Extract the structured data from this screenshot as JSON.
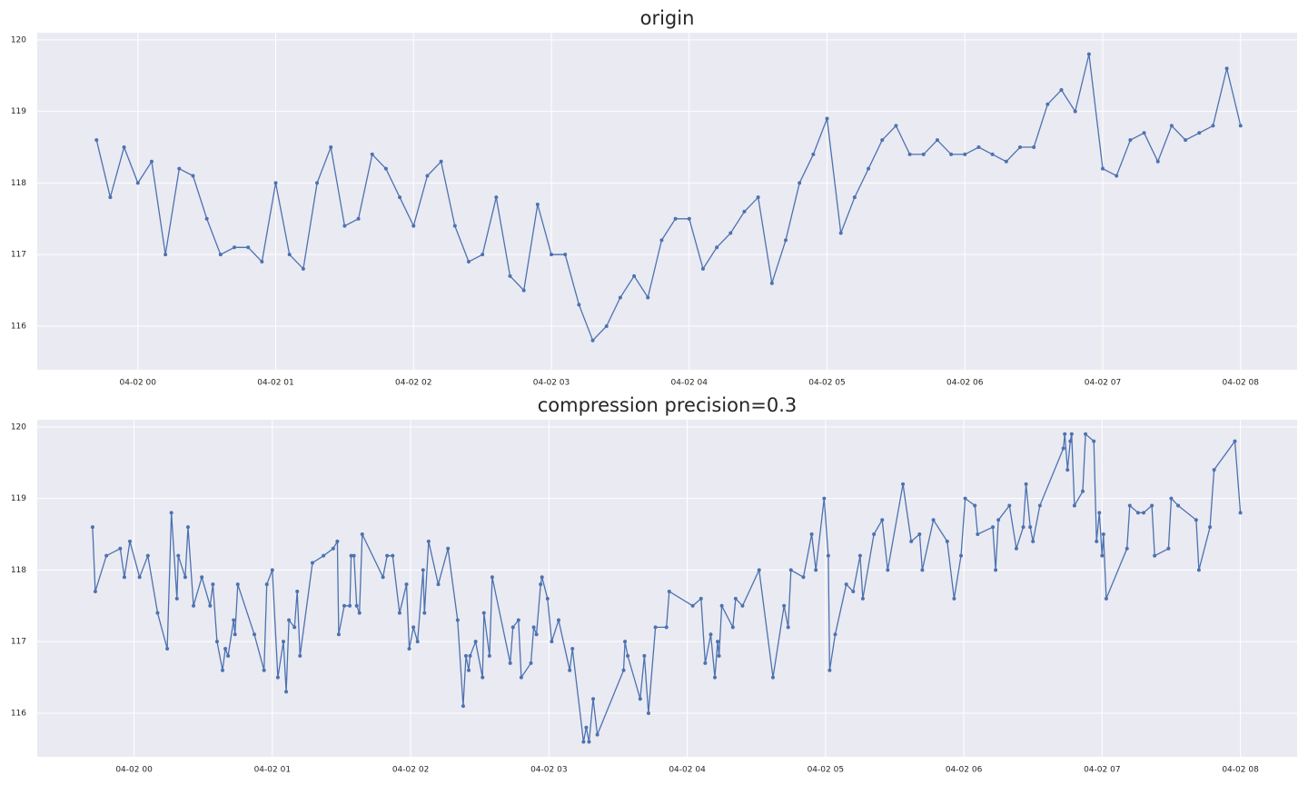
{
  "chart_data": [
    {
      "type": "line",
      "title": "origin",
      "color": "#4c72b0",
      "grid": true,
      "x": [
        -0.3,
        -0.2,
        -0.1,
        0.0,
        0.1,
        0.2,
        0.3,
        0.4,
        0.5,
        0.6,
        0.7,
        0.8,
        0.9,
        1.0,
        1.1,
        1.2,
        1.3,
        1.4,
        1.5,
        1.6,
        1.7,
        1.8,
        1.9,
        2.0,
        2.1,
        2.2,
        2.3,
        2.4,
        2.5,
        2.6,
        2.7,
        2.8,
        2.9,
        3.0,
        3.1,
        3.2,
        3.3,
        3.4,
        3.5,
        3.6,
        3.7,
        3.8,
        3.9,
        4.0,
        4.1,
        4.2,
        4.3,
        4.4,
        4.5,
        4.6,
        4.7,
        4.8,
        4.9,
        5.0,
        5.1,
        5.2,
        5.3,
        5.4,
        5.5,
        5.6,
        5.7,
        5.8,
        5.9,
        6.0,
        6.1,
        6.2,
        6.3,
        6.4,
        6.5,
        6.6,
        6.7,
        6.8,
        6.9,
        7.0,
        7.1,
        7.2,
        7.3,
        7.4,
        7.5,
        7.6,
        7.7,
        7.8,
        7.9,
        8.0
      ],
      "values": [
        118.6,
        117.8,
        118.5,
        118.0,
        118.3,
        117.0,
        118.2,
        118.1,
        117.5,
        117.0,
        117.1,
        117.1,
        116.9,
        118.0,
        117.0,
        116.8,
        118.0,
        118.5,
        117.4,
        117.5,
        118.4,
        118.2,
        117.8,
        117.4,
        118.1,
        118.3,
        117.4,
        116.9,
        117.0,
        117.8,
        116.7,
        116.5,
        117.7,
        117.0,
        117.0,
        116.3,
        115.8,
        116.0,
        116.4,
        116.7,
        116.4,
        117.2,
        117.5,
        117.5,
        116.8,
        117.1,
        117.3,
        117.6,
        117.8,
        116.6,
        117.2,
        118.0,
        118.4,
        118.9,
        117.3,
        117.8,
        118.2,
        118.6,
        118.8,
        118.4,
        118.4,
        118.6,
        118.4,
        118.4,
        118.5,
        118.4,
        118.3,
        118.5,
        118.5,
        119.1,
        119.3,
        119.0,
        119.8,
        118.2,
        118.1,
        118.6,
        118.7,
        118.3,
        118.8,
        118.6,
        118.7,
        118.8,
        119.6,
        118.8
      ],
      "xlim": [
        -0.73,
        8.41
      ],
      "ylim": [
        115.39,
        120.1
      ],
      "xticks": [
        {
          "value": 0,
          "label": "04-02 00"
        },
        {
          "value": 1,
          "label": "04-02 01"
        },
        {
          "value": 2,
          "label": "04-02 02"
        },
        {
          "value": 3,
          "label": "04-02 03"
        },
        {
          "value": 4,
          "label": "04-02 04"
        },
        {
          "value": 5,
          "label": "04-02 05"
        },
        {
          "value": 6,
          "label": "04-02 06"
        },
        {
          "value": 7,
          "label": "04-02 07"
        },
        {
          "value": 8,
          "label": "04-02 08"
        }
      ],
      "yticks": [
        116,
        117,
        118,
        119,
        120
      ]
    },
    {
      "type": "line",
      "title": "compression precision=0.3",
      "color": "#4c72b0",
      "grid": true,
      "x": [
        -0.3,
        -0.28,
        -0.2,
        -0.1,
        -0.07,
        -0.03,
        0.04,
        0.1,
        0.17,
        0.24,
        0.27,
        0.31,
        0.32,
        0.37,
        0.39,
        0.43,
        0.49,
        0.55,
        0.57,
        0.6,
        0.64,
        0.66,
        0.68,
        0.72,
        0.73,
        0.75,
        0.87,
        0.94,
        0.96,
        1.0,
        1.04,
        1.08,
        1.1,
        1.12,
        1.16,
        1.18,
        1.2,
        1.29,
        1.37,
        1.44,
        1.47,
        1.48,
        1.52,
        1.56,
        1.57,
        1.59,
        1.61,
        1.63,
        1.65,
        1.8,
        1.83,
        1.87,
        1.92,
        1.97,
        1.99,
        2.02,
        2.05,
        2.09,
        2.1,
        2.13,
        2.2,
        2.27,
        2.34,
        2.38,
        2.4,
        2.42,
        2.43,
        2.47,
        2.52,
        2.53,
        2.57,
        2.59,
        2.72,
        2.74,
        2.78,
        2.8,
        2.87,
        2.89,
        2.91,
        2.94,
        2.95,
        2.99,
        3.02,
        3.07,
        3.15,
        3.17,
        3.25,
        3.27,
        3.29,
        3.32,
        3.35,
        3.54,
        3.55,
        3.57,
        3.66,
        3.69,
        3.72,
        3.77,
        3.85,
        3.87,
        4.04,
        4.1,
        4.13,
        4.17,
        4.2,
        4.22,
        4.23,
        4.25,
        4.33,
        4.35,
        4.4,
        4.52,
        4.62,
        4.7,
        4.73,
        4.75,
        4.84,
        4.9,
        4.93,
        4.99,
        5.02,
        5.03,
        5.07,
        5.15,
        5.2,
        5.25,
        5.27,
        5.35,
        5.41,
        5.45,
        5.56,
        5.62,
        5.68,
        5.7,
        5.78,
        5.88,
        5.93,
        5.98,
        6.01,
        6.08,
        6.1,
        6.21,
        6.23,
        6.25,
        6.33,
        6.38,
        6.43,
        6.45,
        6.48,
        6.5,
        6.55,
        6.72,
        6.73,
        6.75,
        6.77,
        6.78,
        6.8,
        6.86,
        6.88,
        6.94,
        6.96,
        6.98,
        7.0,
        7.01,
        7.03,
        7.18,
        7.2,
        7.26,
        7.3,
        7.36,
        7.38,
        7.48,
        7.5,
        7.55,
        7.68,
        7.7,
        7.78,
        7.81,
        7.96,
        8.0
      ],
      "values": [
        118.6,
        117.7,
        118.2,
        118.3,
        117.9,
        118.4,
        117.9,
        118.2,
        117.4,
        116.9,
        118.8,
        117.6,
        118.2,
        117.9,
        118.6,
        117.5,
        117.9,
        117.5,
        117.8,
        117.0,
        116.6,
        116.9,
        116.8,
        117.3,
        117.1,
        117.8,
        117.1,
        116.6,
        117.8,
        118.0,
        116.5,
        117.0,
        116.3,
        117.3,
        117.2,
        117.7,
        116.8,
        118.1,
        118.2,
        118.3,
        118.4,
        117.1,
        117.5,
        117.5,
        118.2,
        118.2,
        117.5,
        117.4,
        118.5,
        117.9,
        118.2,
        118.2,
        117.4,
        117.8,
        116.9,
        117.2,
        117.0,
        118.0,
        117.4,
        118.4,
        117.8,
        118.3,
        117.3,
        116.1,
        116.8,
        116.6,
        116.8,
        117.0,
        116.5,
        117.4,
        116.8,
        117.9,
        116.7,
        117.2,
        117.3,
        116.5,
        116.7,
        117.2,
        117.1,
        117.8,
        117.9,
        117.6,
        117.0,
        117.3,
        116.6,
        116.9,
        115.6,
        115.8,
        115.6,
        116.2,
        115.7,
        116.6,
        117.0,
        116.8,
        116.2,
        116.8,
        116.0,
        117.2,
        117.2,
        117.7,
        117.5,
        117.6,
        116.7,
        117.1,
        116.5,
        117.0,
        116.8,
        117.5,
        117.2,
        117.6,
        117.5,
        118.0,
        116.5,
        117.5,
        117.2,
        118.0,
        117.9,
        118.5,
        118.0,
        119.0,
        118.2,
        116.6,
        117.1,
        117.8,
        117.7,
        118.2,
        117.6,
        118.5,
        118.7,
        118.0,
        119.2,
        118.4,
        118.5,
        118.0,
        118.7,
        118.4,
        117.6,
        118.2,
        119.0,
        118.9,
        118.5,
        118.6,
        118.0,
        118.7,
        118.9,
        118.3,
        118.6,
        119.2,
        118.6,
        118.4,
        118.9,
        119.7,
        119.9,
        119.4,
        119.8,
        119.9,
        118.9,
        119.1,
        119.9,
        119.8,
        118.4,
        118.8,
        118.2,
        118.5,
        117.6,
        118.3,
        118.9,
        118.8,
        118.8,
        118.9,
        118.2,
        118.3,
        119.0,
        118.9,
        118.7,
        118.0,
        118.6,
        119.4,
        119.8,
        118.8
      ],
      "xlim": [
        -0.7,
        8.41
      ],
      "ylim": [
        115.39,
        120.1
      ],
      "xticks": [
        {
          "value": 0,
          "label": "04-02 00"
        },
        {
          "value": 1,
          "label": "04-02 01"
        },
        {
          "value": 2,
          "label": "04-02 02"
        },
        {
          "value": 3,
          "label": "04-02 03"
        },
        {
          "value": 4,
          "label": "04-02 04"
        },
        {
          "value": 5,
          "label": "04-02 05"
        },
        {
          "value": 6,
          "label": "04-02 06"
        },
        {
          "value": 7,
          "label": "04-02 07"
        },
        {
          "value": 8,
          "label": "04-02 08"
        }
      ],
      "yticks": [
        116,
        117,
        118,
        119,
        120
      ]
    }
  ]
}
